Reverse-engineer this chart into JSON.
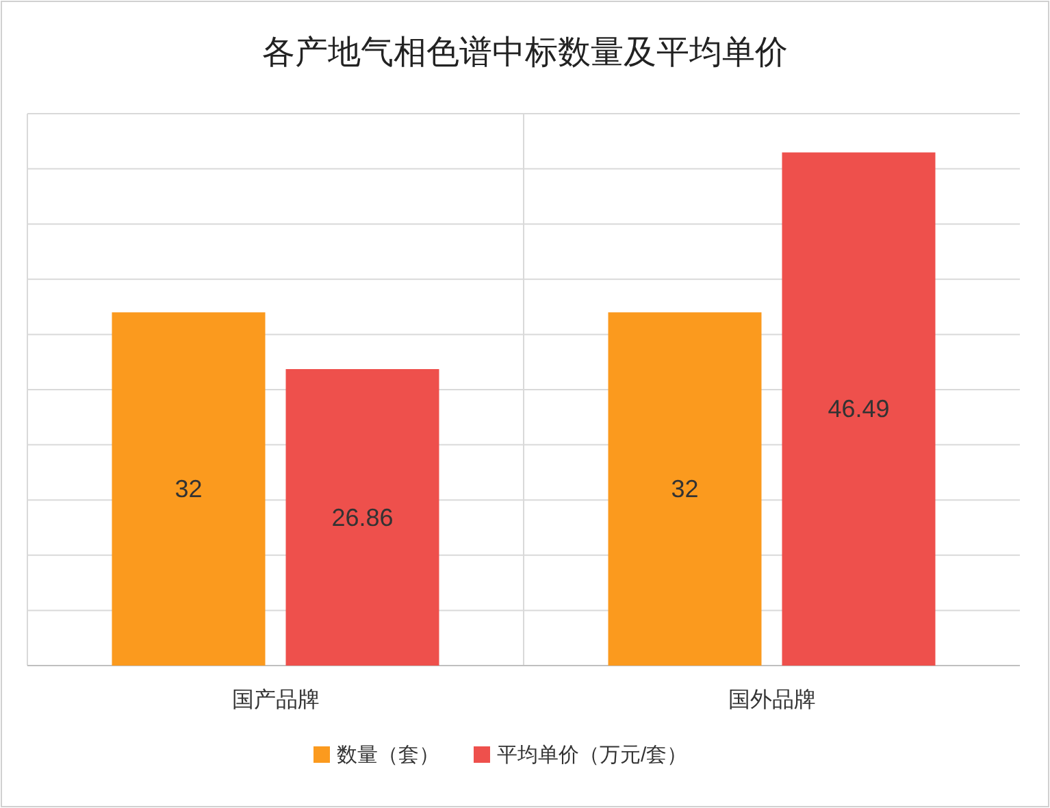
{
  "chart_data": {
    "type": "bar",
    "title": "各产地气相色谱中标数量及平均单价",
    "categories": [
      "国产品牌",
      "国外品牌"
    ],
    "series": [
      {
        "name": "数量（套）",
        "color": "#fb9a1e",
        "values": [
          32,
          32
        ]
      },
      {
        "name": "平均单价（万元/套）",
        "color": "#ee504c",
        "values": [
          26.86,
          46.49
        ]
      }
    ],
    "ylim": [
      0,
      50
    ],
    "yticks": [
      {
        "value": 0,
        "label": null
      },
      {
        "value": 5,
        "label": null
      },
      {
        "value": 10,
        "label": null
      },
      {
        "value": 15,
        "label": null
      },
      {
        "value": 20,
        "label": null
      },
      {
        "value": 25,
        "label": null
      },
      {
        "value": 30,
        "label": null
      },
      {
        "value": 35,
        "label": null
      },
      {
        "value": 40,
        "label": null
      },
      {
        "value": 45,
        "label": null
      },
      {
        "value": 50,
        "label": null
      }
    ],
    "tick_labels": "x",
    "grid": "y",
    "legend": "bottom",
    "data_labels": true
  }
}
